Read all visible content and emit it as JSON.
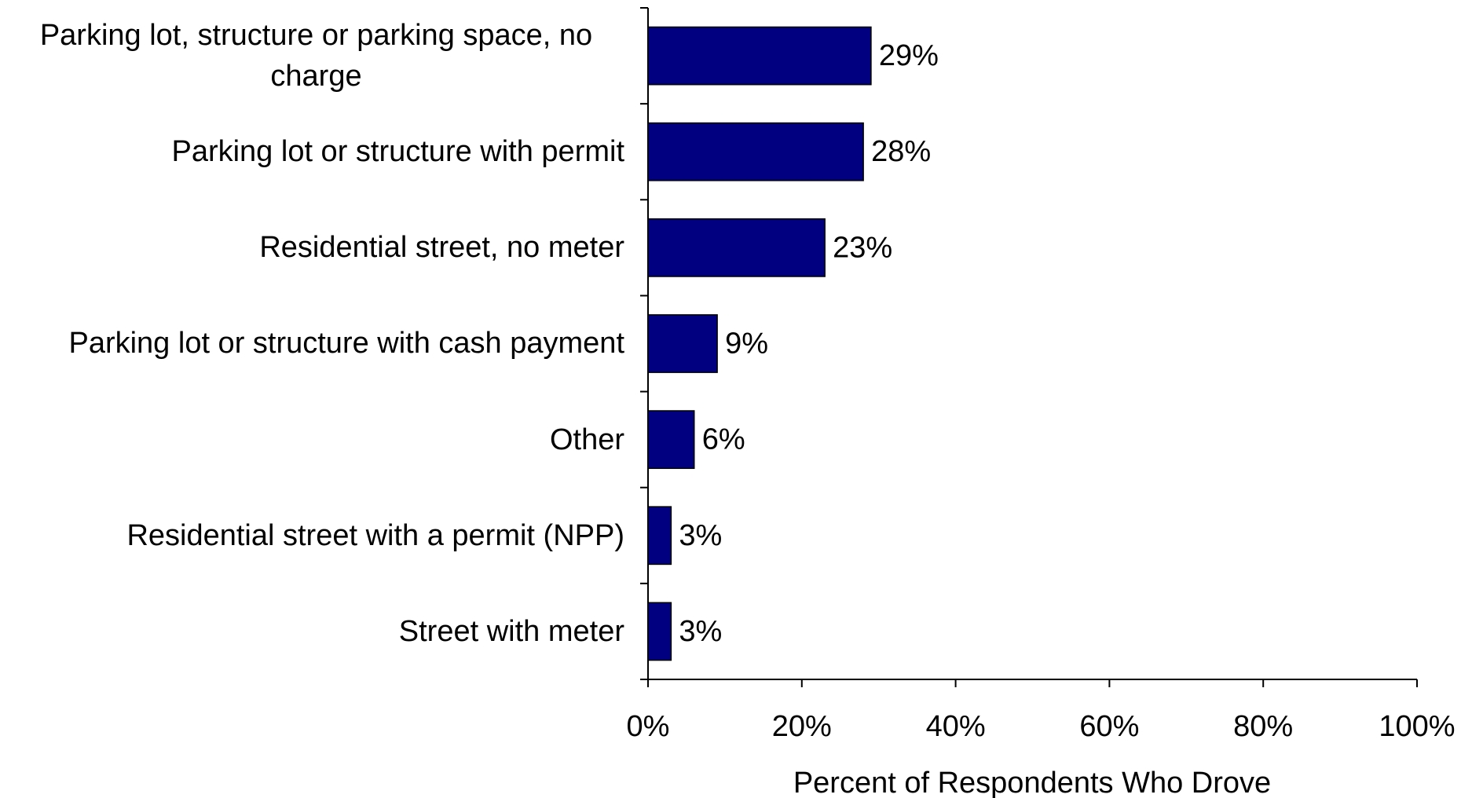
{
  "chart_data": {
    "type": "bar",
    "orientation": "horizontal",
    "x_label": "Percent of Respondents Who Drove",
    "categories": [
      "Parking lot, structure or parking space, no charge",
      "Parking lot or structure with permit",
      "Residential street, no meter",
      "Parking lot or structure with cash payment",
      "Other",
      "Residential street with a permit (NPP)",
      "Street with meter"
    ],
    "values": [
      29,
      28,
      23,
      9,
      6,
      3,
      3
    ],
    "value_labels": [
      "29%",
      "28%",
      "23%",
      "9%",
      "6%",
      "3%",
      "3%"
    ],
    "color": "#000080",
    "xlim": [
      0,
      100
    ],
    "xticks": [
      {
        "value": 0,
        "label": "0%"
      },
      {
        "value": 20,
        "label": "20%"
      },
      {
        "value": 40,
        "label": "40%"
      },
      {
        "value": 60,
        "label": "60%"
      },
      {
        "value": 80,
        "label": "80%"
      },
      {
        "value": 100,
        "label": "100%"
      }
    ],
    "grid": false
  }
}
